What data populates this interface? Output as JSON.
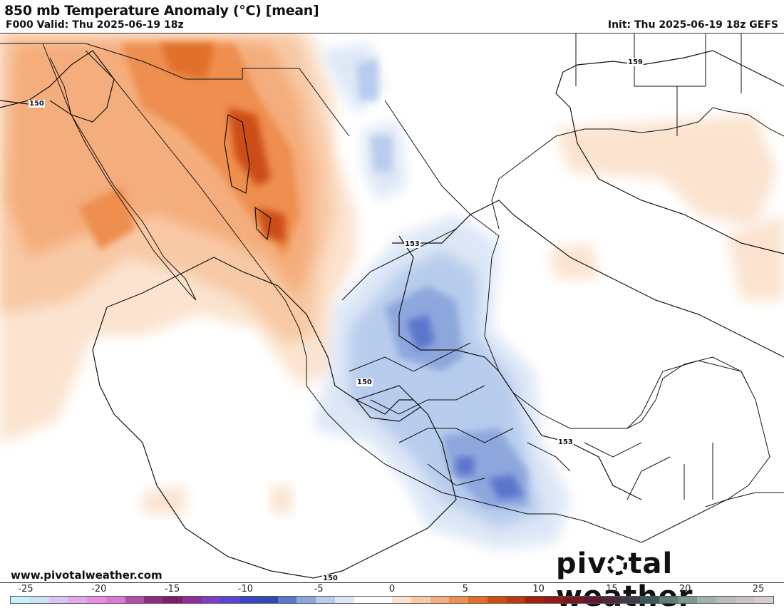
{
  "header": {
    "title": "850 mb Temperature Anomaly (°C) [mean]",
    "valid": "F000 Valid: Thu 2025-06-19 18z",
    "init": "Init: Thu 2025-06-19 18z GEFS"
  },
  "footer": {
    "website": "www.pivotalweather.com",
    "brand_left": "piv",
    "brand_right": "tal weather"
  },
  "contour_labels": [
    {
      "text": "150"
    },
    {
      "text": "159"
    },
    {
      "text": "153"
    },
    {
      "text": "150"
    },
    {
      "text": "153"
    },
    {
      "text": "150"
    }
  ],
  "colorbar": {
    "ticks": [
      "-25",
      "-20",
      "-15",
      "-10",
      "-5",
      "0",
      "5",
      "10",
      "15",
      "20",
      "25"
    ],
    "colors": [
      "#c6f3f7",
      "#cde0f5",
      "#d9c6f2",
      "#e2a8ee",
      "#e98ee6",
      "#d77ad8",
      "#b04fa9",
      "#8a2c7e",
      "#7a1f6b",
      "#8c2f9c",
      "#7b3fc4",
      "#5b45d0",
      "#3c44c4",
      "#3049b0",
      "#5a76cc",
      "#8da7dd",
      "#b8cced",
      "#dde7f6",
      "#ffffff",
      "#ffffff",
      "#fbe3cf",
      "#f8c9a5",
      "#f4ad7c",
      "#ee8e50",
      "#e06f2c",
      "#cc4e12",
      "#b83a10",
      "#a4200f",
      "#8f1a16",
      "#7a1820",
      "#62182d",
      "#4d2a3a",
      "#3f3b48",
      "#3c5a5c",
      "#5e7e78",
      "#7a9a90",
      "#9fb3aa",
      "#b8bdb8",
      "#c9c2c2",
      "#d8cccc"
    ]
  },
  "map": {
    "legend_note": "",
    "warm_color": "#ee8e50",
    "cool_color": "#5a76cc"
  }
}
